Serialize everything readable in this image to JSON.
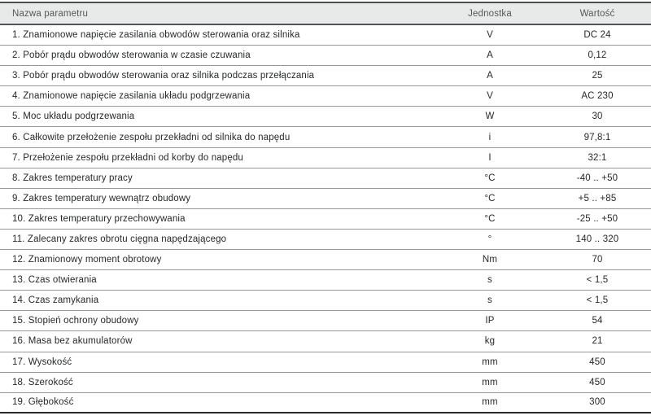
{
  "table": {
    "columns": {
      "name": "Nazwa parametru",
      "unit": "Jednostka",
      "value": "Wartość"
    },
    "rows": [
      {
        "name": "1. Znamionowe napięcie zasilania obwodów sterowania oraz silnika",
        "unit": "V",
        "value": "DC 24"
      },
      {
        "name": "2. Pobór prądu obwodów sterowania w czasie czuwania",
        "unit": "A",
        "value": "0,12"
      },
      {
        "name": "3. Pobór prądu obwodów sterowania oraz silnika podczas przełączania",
        "unit": "A",
        "value": "25"
      },
      {
        "name": "4. Znamionowe napięcie zasilania układu podgrzewania",
        "unit": "V",
        "value": "AC 230"
      },
      {
        "name": "5. Moc układu podgrzewania",
        "unit": "W",
        "value": "30"
      },
      {
        "name": "6. Całkowite przełożenie zespołu przekładni od silnika do napędu",
        "unit": "i",
        "value": "97,8:1"
      },
      {
        "name": "7. Przełożenie zespołu przekładni od korby do napędu",
        "unit": "I",
        "value": "32:1"
      },
      {
        "name": "8. Zakres temperatury pracy",
        "unit": "°C",
        "value": "-40 .. +50"
      },
      {
        "name": "9. Zakres temperatury wewnątrz obudowy",
        "unit": "°C",
        "value": "+5 .. +85"
      },
      {
        "name": "10. Zakres temperatury przechowywania",
        "unit": "°C",
        "value": "-25 .. +50"
      },
      {
        "name": "11. Zalecany zakres obrotu cięgna napędzającego",
        "unit": "°",
        "value": "140 .. 320"
      },
      {
        "name": "12. Znamionowy moment obrotowy",
        "unit": "Nm",
        "value": "70"
      },
      {
        "name": "13. Czas otwierania",
        "unit": "s",
        "value": "< 1,5"
      },
      {
        "name": "14. Czas zamykania",
        "unit": "s",
        "value": "< 1,5"
      },
      {
        "name": "15. Stopień ochrony obudowy",
        "unit": "IP",
        "value": "54"
      },
      {
        "name": "16. Masa bez akumulatorów",
        "unit": "kg",
        "value": "21"
      },
      {
        "name": "17. Wysokość",
        "unit": "mm",
        "value": "450"
      },
      {
        "name": "18. Szerokość",
        "unit": "mm",
        "value": "450"
      },
      {
        "name": "19. Głębokość",
        "unit": "mm",
        "value": "300"
      }
    ]
  },
  "colors": {
    "header_bg": "#e8e9e9",
    "header_text": "#54585a",
    "row_text": "#26282a",
    "border_top": "#4d4d50",
    "border_header": "#515558",
    "border_row": "#95999b",
    "border_bottom": "#2b2b2e"
  }
}
